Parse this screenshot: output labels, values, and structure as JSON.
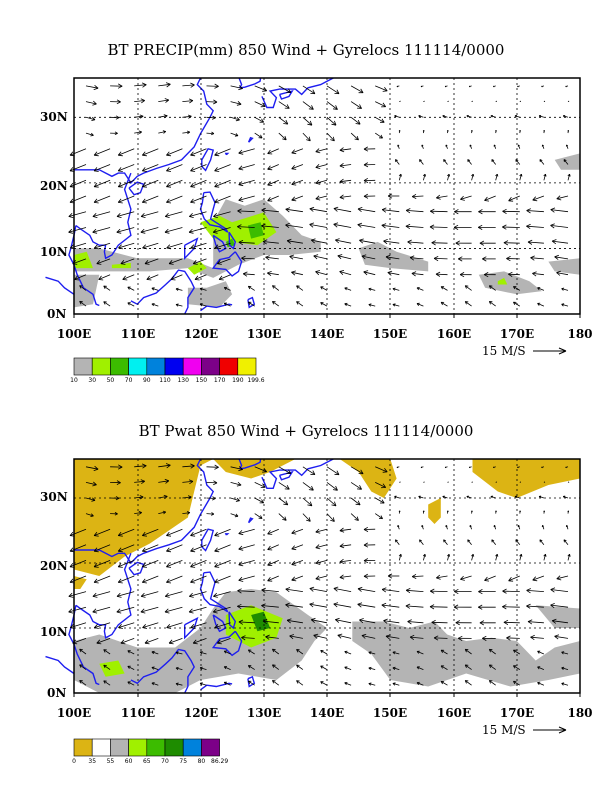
{
  "panels": [
    {
      "title": "BT PRECIP(mm) 850 Wind + Gyrelocs 111114/0000",
      "lon_labels": [
        "100E",
        "110E",
        "120E",
        "130E",
        "140E",
        "150E",
        "160E",
        "170E",
        "180"
      ],
      "lat_labels": [
        "30N",
        "20N",
        "10N",
        "0N"
      ],
      "lon_range": [
        100,
        180
      ],
      "lat_range": [
        0,
        36
      ],
      "grid": "dashed",
      "ref_vector_label": "15 M/S",
      "colorbar": {
        "labels": [
          "10",
          "30",
          "50",
          "70",
          "90",
          "110",
          "130",
          "150",
          "170",
          "190",
          "199.6"
        ],
        "colors": [
          "#b4b4b4",
          "#a0f000",
          "#3cbc00",
          "#00f0f0",
          "#0082dc",
          "#0000f0",
          "#f000f0",
          "#7c0088",
          "#f00000",
          "#f0f000"
        ]
      }
    },
    {
      "title": "BT Pwat 850 Wind + Gyrelocs 111114/0000",
      "lon_labels": [
        "100E",
        "110E",
        "120E",
        "130E",
        "140E",
        "150E",
        "160E",
        "170E",
        "180"
      ],
      "lat_labels": [
        "30N",
        "20N",
        "10N",
        "0N"
      ],
      "lon_range": [
        100,
        180
      ],
      "lat_range": [
        0,
        36
      ],
      "grid": "dashed",
      "ref_vector_label": "15 M/S",
      "colorbar": {
        "labels": [
          "0",
          "35",
          "55",
          "60",
          "65",
          "70",
          "75",
          "80",
          "86.29"
        ],
        "colors": [
          "#dcb414",
          "#ffffff",
          "#b4b4b4",
          "#a0f000",
          "#3cbc00",
          "#1e8c00",
          "#0082dc",
          "#7c0088"
        ]
      }
    }
  ],
  "colors": {
    "coast": "#1e1ef0",
    "frame": "#000000"
  }
}
